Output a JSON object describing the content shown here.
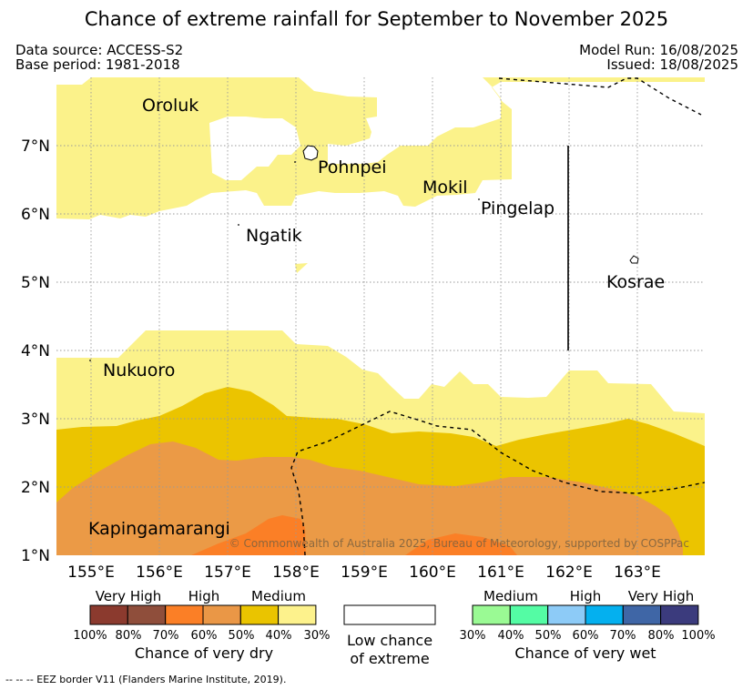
{
  "title": "Chance of extreme rainfall for September to November 2025",
  "meta": {
    "data_source": "Data source: ACCESS-S2",
    "base_period": "Base period: 1981-2018",
    "model_run": "Model Run: 16/08/2025",
    "issued": "Issued: 18/08/2025"
  },
  "map": {
    "lat_labels": [
      "7°N",
      "6°N",
      "5°N",
      "4°N",
      "3°N",
      "2°N",
      "1°N"
    ],
    "lon_labels": [
      "155°E",
      "156°E",
      "157°E",
      "158°E",
      "159°E",
      "160°E",
      "161°E",
      "162°E",
      "163°E"
    ],
    "places": [
      "Oroluk",
      "Pohnpei",
      "Mokil",
      "Pingelap",
      "Ngatik",
      "Kosrae",
      "Nukuoro",
      "Kapingamarangi"
    ],
    "copyright": "© Commonwealth of Australia 2025, Bureau of Meteorology, supported by COSPPac"
  },
  "legend": {
    "dry": {
      "categories": [
        "Very High",
        "High",
        "Medium"
      ],
      "percents": [
        "100%",
        "80%",
        "70%",
        "60%",
        "50%",
        "40%",
        "30%"
      ],
      "colors": [
        "#8b3a2e",
        "#8f4e3b",
        "#fb7f26",
        "#ea9746",
        "#eac400",
        "#fdf28c"
      ],
      "title": "Chance of very dry"
    },
    "neutral": {
      "line1": "Low chance",
      "line2": "of extreme"
    },
    "wet": {
      "categories": [
        "Medium",
        "High",
        "Very High"
      ],
      "percents": [
        "30%",
        "40%",
        "50%",
        "60%",
        "70%",
        "80%",
        "100%"
      ],
      "colors": [
        "#9afa94",
        "#54fca4",
        "#8dcbf7",
        "#04b0ef",
        "#3f66a6",
        "#3b3b7d"
      ],
      "title": "Chance of very wet"
    }
  },
  "colors": {
    "medium_light": "#fbf28a",
    "medium": "#ebc400",
    "high": "#eb9a46",
    "high_dark": "#fb7f26"
  },
  "footnote": "-- -- -- EEZ border V11 (Flanders Marine Institute, 2019)."
}
